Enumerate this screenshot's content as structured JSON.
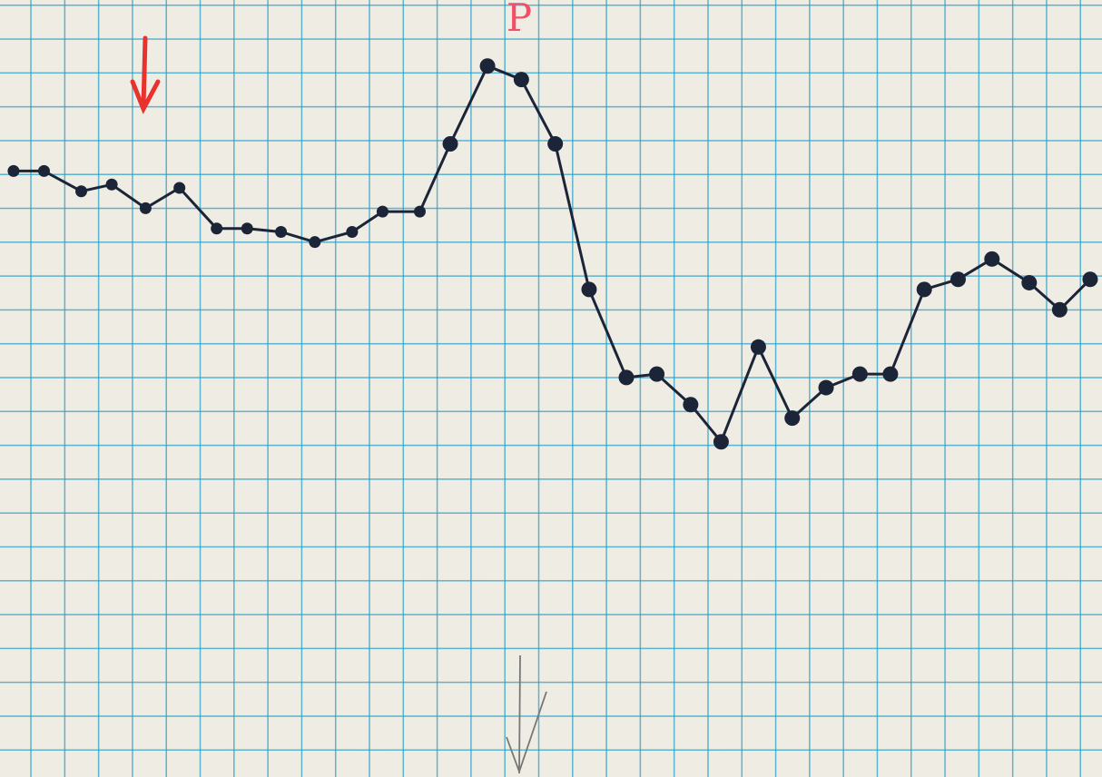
{
  "chart_data": {
    "type": "line",
    "annotation": "P",
    "x": [
      0.4,
      1.3,
      2.4,
      3.3,
      4.3,
      5.3,
      6.4,
      7.3,
      8.3,
      9.3,
      10.4,
      11.3,
      12.4,
      13.3,
      14.4,
      15.4,
      16.4,
      17.4,
      18.5,
      19.4,
      20.4,
      21.3,
      22.4,
      23.4,
      24.4,
      25.4,
      26.3,
      27.3,
      28.3,
      29.3,
      30.4,
      31.3,
      32.2
    ],
    "values": [
      17.9,
      17.9,
      17.3,
      17.5,
      16.8,
      17.4,
      16.2,
      16.2,
      16.1,
      15.8,
      16.1,
      16.7,
      16.7,
      18.7,
      21.0,
      20.6,
      18.7,
      14.4,
      11.8,
      11.9,
      11.0,
      9.9,
      12.7,
      10.6,
      11.5,
      11.9,
      11.9,
      14.4,
      14.7,
      15.3,
      14.6,
      13.8,
      14.7
    ],
    "color": "#1c2438",
    "xlim": [
      0,
      32.55
    ],
    "ylim": [
      0,
      22.95
    ]
  }
}
